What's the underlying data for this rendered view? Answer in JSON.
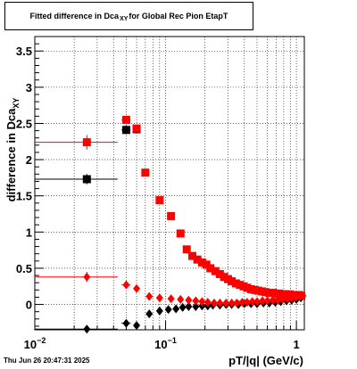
{
  "title": {
    "prefix": "Fitted difference in Dca",
    "subscript": "XY",
    "suffix": "for Global Rec Pion EtapT"
  },
  "footer": "Thu Jun 26 20:47:31 2025",
  "chart_data": {
    "type": "scatter",
    "xlabel": "pT/|q| (GeV/c)",
    "ylabel_main": "difference in Dca",
    "ylabel_sub": "XY",
    "xscale": "log",
    "xlim": [
      0.01,
      1.15
    ],
    "ylim": [
      -0.35,
      3.7
    ],
    "x_ticks": [
      {
        "value": 0.01,
        "base": "10",
        "exp": "−2"
      },
      {
        "value": 0.1,
        "base": "10",
        "exp": "−1"
      },
      {
        "value": 1,
        "base": "1",
        "exp": ""
      }
    ],
    "y_ticks": [
      {
        "value": 0,
        "label": "0"
      },
      {
        "value": 0.5,
        "label": "0.5"
      },
      {
        "value": 1,
        "label": "1"
      },
      {
        "value": 1.5,
        "label": "1.5"
      },
      {
        "value": 2,
        "label": "2"
      },
      {
        "value": 2.5,
        "label": "2.5"
      },
      {
        "value": 3,
        "label": "3"
      },
      {
        "value": 3.5,
        "label": "3.5"
      }
    ],
    "grid": true,
    "series": [
      {
        "marker": "square",
        "color": "#000000",
        "x": [
          0.025,
          0.05,
          0.06
        ],
        "y": [
          1.73,
          2.41,
          2.42
        ],
        "xerr_lo": [
          0.015,
          0.004,
          0.0015
        ],
        "xerr_hi": [
          0.018,
          0.004,
          0.0015
        ],
        "yerr": [
          0.07,
          0.06,
          0.05
        ]
      },
      {
        "marker": "square",
        "color": "#ff0000",
        "x": [
          0.025,
          0.05,
          0.06,
          0.07,
          0.09,
          0.11,
          0.13,
          0.145,
          0.16,
          0.175,
          0.19,
          0.205,
          0.22,
          0.24,
          0.26,
          0.28,
          0.3,
          0.32,
          0.345,
          0.37,
          0.395,
          0.42,
          0.45,
          0.48,
          0.51,
          0.545,
          0.58,
          0.62,
          0.66,
          0.7,
          0.74,
          0.79,
          0.84,
          0.89,
          0.94,
          0.99,
          1.04,
          1.09
        ],
        "y": [
          2.24,
          2.55,
          2.43,
          1.82,
          1.44,
          1.22,
          0.98,
          0.76,
          0.67,
          0.62,
          0.58,
          0.55,
          0.5,
          0.46,
          0.42,
          0.38,
          0.35,
          0.32,
          0.29,
          0.27,
          0.25,
          0.23,
          0.21,
          0.2,
          0.19,
          0.18,
          0.17,
          0.16,
          0.16,
          0.15,
          0.15,
          0.14,
          0.14,
          0.14,
          0.13,
          0.13,
          0.13,
          0.12
        ],
        "xerr_lo": [
          0.015,
          0.004,
          0.0015,
          0.002,
          0.005,
          0.006,
          0.005,
          0.003,
          0.003,
          0.003,
          0.003,
          0.003,
          0.003,
          0.004,
          0.004,
          0.004,
          0.004,
          0.004,
          0.005,
          0.005,
          0.005,
          0.005,
          0.006,
          0.006,
          0.006,
          0.007,
          0.007,
          0.008,
          0.008,
          0.009,
          0.009,
          0.01,
          0.01,
          0.011,
          0.012,
          0.012,
          0.013,
          0.014
        ],
        "xerr_hi": [
          0.018,
          0.004,
          0.0015,
          0.002,
          0.005,
          0.006,
          0.005,
          0.003,
          0.003,
          0.003,
          0.003,
          0.003,
          0.003,
          0.004,
          0.004,
          0.004,
          0.004,
          0.004,
          0.005,
          0.005,
          0.005,
          0.005,
          0.006,
          0.006,
          0.006,
          0.007,
          0.007,
          0.008,
          0.008,
          0.009,
          0.009,
          0.01,
          0.01,
          0.011,
          0.012,
          0.012,
          0.013,
          0.014
        ],
        "yerr": [
          0.1,
          0.05,
          0.04,
          0.03,
          0.03,
          0.03,
          0.02,
          0.02,
          0.02,
          0.02,
          0.02,
          0.02,
          0.02,
          0.02,
          0.02,
          0.02,
          0.02,
          0.02,
          0.02,
          0.02,
          0.02,
          0.02,
          0.02,
          0.02,
          0.02,
          0.02,
          0.02,
          0.02,
          0.02,
          0.02,
          0.02,
          0.02,
          0.02,
          0.02,
          0.02,
          0.02,
          0.02,
          0.02
        ]
      },
      {
        "marker": "diamond",
        "color": "#000000",
        "x": [
          0.025,
          0.05,
          0.06,
          0.075,
          0.09,
          0.105,
          0.12,
          0.135,
          0.15,
          0.17,
          0.19,
          0.21,
          0.23,
          0.26,
          0.29,
          0.32,
          0.36,
          0.4,
          0.45,
          0.5,
          0.56,
          0.62,
          0.69,
          0.76,
          0.84,
          0.92,
          1.0,
          1.08
        ],
        "y": [
          -0.34,
          -0.26,
          -0.29,
          -0.13,
          -0.09,
          -0.07,
          -0.06,
          -0.04,
          -0.03,
          -0.03,
          -0.02,
          -0.02,
          -0.01,
          -0.01,
          0.0,
          0.0,
          0.0,
          0.01,
          0.01,
          0.01,
          0.02,
          0.02,
          0.03,
          0.04,
          0.05,
          0.06,
          0.07,
          0.09
        ],
        "xerr_lo": [
          0.015,
          0.004,
          0.0015,
          0.003,
          0.004,
          0.004,
          0.004,
          0.004,
          0.005,
          0.006,
          0.006,
          0.007,
          0.008,
          0.009,
          0.01,
          0.01,
          0.012,
          0.013,
          0.015,
          0.016,
          0.018,
          0.02,
          0.022,
          0.024,
          0.026,
          0.028,
          0.03,
          0.032
        ],
        "xerr_hi": [
          0.018,
          0.004,
          0.0015,
          0.003,
          0.004,
          0.004,
          0.004,
          0.004,
          0.005,
          0.006,
          0.006,
          0.007,
          0.008,
          0.009,
          0.01,
          0.01,
          0.012,
          0.013,
          0.015,
          0.016,
          0.018,
          0.02,
          0.022,
          0.024,
          0.026,
          0.028,
          0.03,
          0.032
        ],
        "yerr": [
          0.05,
          0.04,
          0.03,
          0.03,
          0.02,
          0.02,
          0.02,
          0.02,
          0.02,
          0.02,
          0.02,
          0.02,
          0.02,
          0.02,
          0.02,
          0.02,
          0.02,
          0.02,
          0.02,
          0.02,
          0.02,
          0.02,
          0.02,
          0.02,
          0.02,
          0.02,
          0.02,
          0.02
        ]
      },
      {
        "marker": "diamond",
        "color": "#ff0000",
        "x": [
          0.025,
          0.05,
          0.06,
          0.075,
          0.09,
          0.11,
          0.13,
          0.15,
          0.17,
          0.19,
          0.21,
          0.235,
          0.26,
          0.29,
          0.32,
          0.35,
          0.385,
          0.42,
          0.46,
          0.5,
          0.55,
          0.6,
          0.66,
          0.72,
          0.78,
          0.85,
          0.92,
          0.99,
          1.06,
          1.12
        ],
        "y": [
          0.38,
          0.27,
          0.22,
          0.11,
          0.09,
          0.08,
          0.07,
          0.06,
          0.05,
          0.04,
          0.03,
          0.02,
          0.02,
          0.02,
          0.02,
          0.02,
          0.03,
          0.03,
          0.04,
          0.04,
          0.05,
          0.05,
          0.06,
          0.06,
          0.07,
          0.08,
          0.09,
          0.1,
          0.11,
          0.12
        ],
        "xerr_lo": [
          0.015,
          0.004,
          0.0015,
          0.003,
          0.004,
          0.005,
          0.005,
          0.005,
          0.006,
          0.006,
          0.007,
          0.008,
          0.009,
          0.01,
          0.01,
          0.011,
          0.012,
          0.013,
          0.015,
          0.016,
          0.018,
          0.02,
          0.022,
          0.024,
          0.026,
          0.028,
          0.03,
          0.032,
          0.034,
          0.036
        ],
        "xerr_hi": [
          0.018,
          0.004,
          0.0015,
          0.003,
          0.004,
          0.005,
          0.005,
          0.005,
          0.006,
          0.006,
          0.007,
          0.008,
          0.009,
          0.01,
          0.01,
          0.011,
          0.012,
          0.013,
          0.015,
          0.016,
          0.018,
          0.02,
          0.022,
          0.024,
          0.026,
          0.028,
          0.03,
          0.032,
          0.034,
          0.036
        ],
        "yerr": [
          0.07,
          0.05,
          0.03,
          0.03,
          0.02,
          0.02,
          0.02,
          0.02,
          0.02,
          0.02,
          0.02,
          0.02,
          0.02,
          0.02,
          0.02,
          0.02,
          0.02,
          0.02,
          0.02,
          0.02,
          0.02,
          0.02,
          0.02,
          0.02,
          0.02,
          0.02,
          0.02,
          0.02,
          0.02,
          0.02
        ]
      }
    ]
  }
}
